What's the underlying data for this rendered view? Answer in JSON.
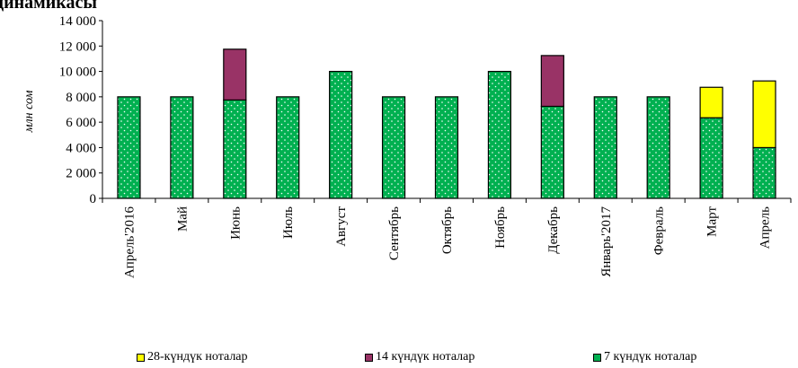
{
  "chart_data": {
    "type": "bar",
    "stacked": true,
    "title": "динамикасы",
    "ylabel": "млн сом",
    "ylim": [
      0,
      14000
    ],
    "yticks": [
      0,
      2000,
      4000,
      6000,
      8000,
      10000,
      12000,
      14000
    ],
    "ytick_labels": [
      "0",
      "2 000",
      "4 000",
      "6 000",
      "8 000",
      "10 000",
      "12 000",
      "14 000"
    ],
    "categories": [
      "Апрель'2016",
      "Май",
      "Июнь",
      "Июль",
      "Август",
      "Сентябрь",
      "Октябрь",
      "Ноябрь",
      "Декабрь",
      "Январь'2017",
      "Февраль",
      "Март",
      "Апрель"
    ],
    "series": [
      {
        "name": "7 күндүк ноталар",
        "color": "#00b050",
        "values": [
          8000,
          8000,
          7750,
          8000,
          10000,
          8000,
          8000,
          10000,
          7250,
          8000,
          8000,
          6350,
          4000
        ]
      },
      {
        "name": "14 күндүк ноталар",
        "color": "#993366",
        "values": [
          0,
          0,
          4000,
          0,
          0,
          0,
          0,
          0,
          4000,
          0,
          0,
          0,
          0
        ]
      },
      {
        "name": "28-күндүк ноталар",
        "color": "#ffff00",
        "values": [
          0,
          0,
          0,
          0,
          0,
          0,
          0,
          0,
          0,
          0,
          0,
          2400,
          5250
        ]
      }
    ],
    "legend_order": [
      "28-күндүк ноталар",
      "14 күндүк ноталар",
      "7 күндүк ноталар"
    ],
    "legend_position": "bottom",
    "grid": false
  }
}
